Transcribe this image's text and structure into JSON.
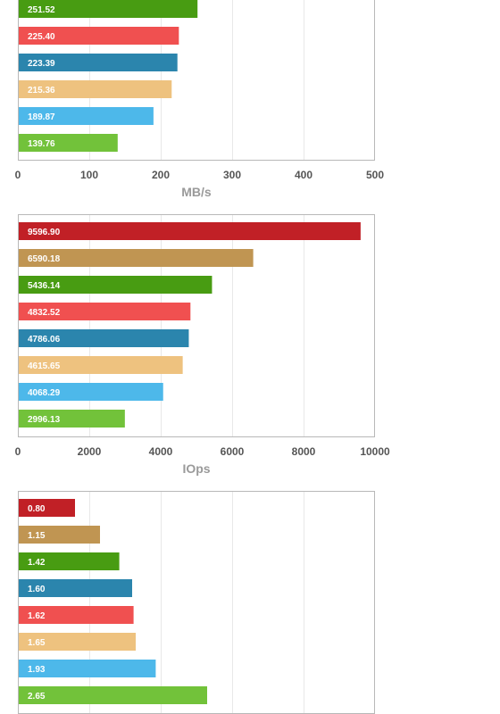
{
  "colors": {
    "red": "#c12026",
    "tan": "#c09552",
    "green": "#489c12",
    "coral": "#f05050",
    "blue": "#2b85ad",
    "peach": "#eec27f",
    "sky": "#4db8ea",
    "lime": "#72c23a",
    "grid": "#e8e8e8",
    "frame": "#b8b8b8"
  },
  "chart_data": [
    {
      "type": "bar",
      "orientation": "horizontal",
      "xlabel": "MB/s",
      "xlim": [
        0,
        500
      ],
      "ticks": [
        "0",
        "100",
        "200",
        "300",
        "400",
        "500"
      ],
      "grid": true,
      "values": [
        251.52,
        225.4,
        223.39,
        215.36,
        189.87,
        139.76
      ],
      "labels": [
        "251.52",
        "225.40",
        "223.39",
        "215.36",
        "189.87",
        "139.76"
      ],
      "colors": [
        "green",
        "coral",
        "blue",
        "peach",
        "sky",
        "lime"
      ]
    },
    {
      "type": "bar",
      "orientation": "horizontal",
      "xlabel": "IOps",
      "xlim": [
        0,
        10000
      ],
      "ticks": [
        "0",
        "2000",
        "4000",
        "6000",
        "8000",
        "10000"
      ],
      "grid": true,
      "values": [
        9596.9,
        6590.18,
        5436.14,
        4832.52,
        4786.06,
        4615.65,
        4068.29,
        2996.13
      ],
      "labels": [
        "9596.90",
        "6590.18",
        "5436.14",
        "4832.52",
        "4786.06",
        "4615.65",
        "4068.29",
        "2996.13"
      ],
      "colors": [
        "red",
        "tan",
        "green",
        "coral",
        "blue",
        "peach",
        "sky",
        "lime"
      ]
    },
    {
      "type": "bar",
      "orientation": "horizontal",
      "xlabel": "",
      "xlim": [
        0,
        5
      ],
      "ticks": [],
      "grid": true,
      "values": [
        0.8,
        1.15,
        1.42,
        1.6,
        1.62,
        1.65,
        1.93,
        2.65
      ],
      "labels": [
        "0.80",
        "1.15",
        "1.42",
        "1.60",
        "1.62",
        "1.65",
        "1.93",
        "2.65"
      ],
      "colors": [
        "red",
        "tan",
        "green",
        "blue",
        "coral",
        "peach",
        "sky",
        "lime"
      ]
    }
  ]
}
